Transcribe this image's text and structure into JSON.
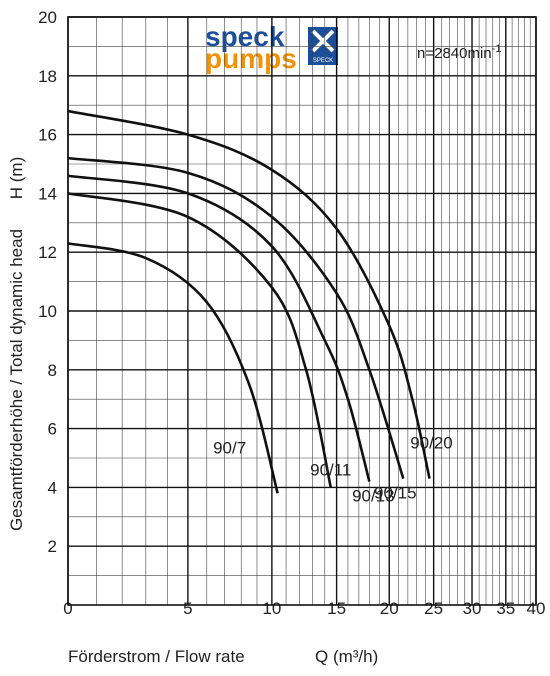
{
  "chart_data": {
    "type": "line",
    "logo": {
      "line1": "speck",
      "line2": "pumps",
      "badge": "SPECK"
    },
    "annotation": {
      "text": "n=2840min",
      "sup": "-1"
    },
    "ylabel": "Gesamtförderhöhe / Total dynamic head",
    "yunit": "H (m)",
    "xlabel": "Förderstrom / Flow rate",
    "xunit": "Q (m³/h)",
    "xlim": [
      0,
      40
    ],
    "xticks": [
      0,
      5,
      10,
      15,
      20,
      25,
      30,
      35,
      40
    ],
    "ylim": [
      0,
      20
    ],
    "yticks": [
      2,
      4,
      6,
      8,
      10,
      12,
      14,
      16,
      18,
      20
    ],
    "grid": true,
    "color": "#111111",
    "series": [
      {
        "name": "90/7",
        "x": [
          0,
          3,
          6,
          8.5,
          10.4
        ],
        "values": [
          12.3,
          11.8,
          10.3,
          7.5,
          3.8
        ]
      },
      {
        "name": "90/11",
        "x": [
          0,
          5,
          10,
          12.5,
          14.5
        ],
        "values": [
          14.0,
          13.2,
          10.8,
          8.0,
          4.0
        ]
      },
      {
        "name": "90/13",
        "x": [
          0,
          5,
          10,
          14,
          16,
          18
        ],
        "values": [
          14.6,
          14.0,
          12.2,
          9.0,
          7.0,
          4.2
        ]
      },
      {
        "name": "90/15",
        "x": [
          0,
          5,
          10,
          15,
          18,
          21.5
        ],
        "values": [
          15.2,
          14.7,
          13.2,
          10.6,
          8.0,
          4.3
        ]
      },
      {
        "name": "90/20",
        "x": [
          0,
          5,
          10,
          15,
          20,
          22.5,
          24.5
        ],
        "values": [
          16.8,
          16.0,
          14.8,
          12.8,
          9.5,
          7.0,
          4.3
        ]
      }
    ]
  }
}
